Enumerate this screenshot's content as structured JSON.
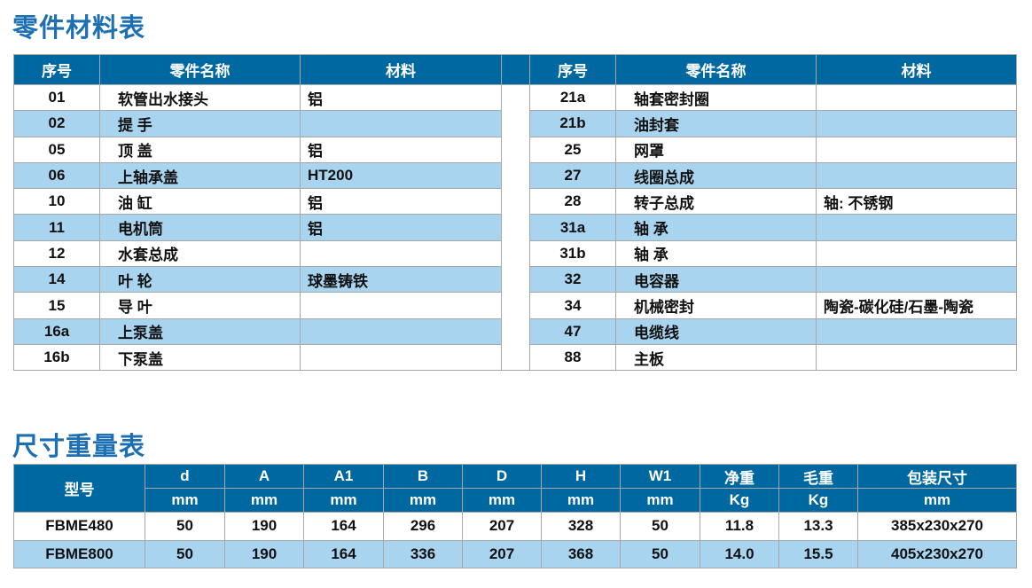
{
  "parts_table": {
    "title": "零件材料表",
    "headers": [
      "序号",
      "零件名称",
      "材料"
    ],
    "left_rows": [
      {
        "no": "01",
        "name": "软管出水接头",
        "material": "铝"
      },
      {
        "no": "02",
        "name": "提  手",
        "material": ""
      },
      {
        "no": "05",
        "name": "顶  盖",
        "material": "铝"
      },
      {
        "no": "06",
        "name": "上轴承盖",
        "material": "HT200"
      },
      {
        "no": "10",
        "name": "油  缸",
        "material": "铝"
      },
      {
        "no": "11",
        "name": "电机筒",
        "material": "铝"
      },
      {
        "no": "12",
        "name": "水套总成",
        "material": ""
      },
      {
        "no": "14",
        "name": "叶  轮",
        "material": "球墨铸铁"
      },
      {
        "no": "15",
        "name": "导  叶",
        "material": ""
      },
      {
        "no": "16a",
        "name": "上泵盖",
        "material": ""
      },
      {
        "no": "16b",
        "name": "下泵盖",
        "material": ""
      }
    ],
    "right_rows": [
      {
        "no": "21a",
        "name": "轴套密封圈",
        "material": ""
      },
      {
        "no": "21b",
        "name": "油封套",
        "material": ""
      },
      {
        "no": "25",
        "name": "网罩",
        "material": ""
      },
      {
        "no": "27",
        "name": "线圈总成",
        "material": ""
      },
      {
        "no": "28",
        "name": "转子总成",
        "material": "轴: 不锈钢"
      },
      {
        "no": "31a",
        "name": "轴  承",
        "material": ""
      },
      {
        "no": "31b",
        "name": "轴  承",
        "material": ""
      },
      {
        "no": "32",
        "name": "电容器",
        "material": ""
      },
      {
        "no": "34",
        "name": "机械密封",
        "material": "陶瓷-碳化硅/石墨-陶瓷"
      },
      {
        "no": "47",
        "name": "电缆线",
        "material": ""
      },
      {
        "no": "88",
        "name": "主板",
        "material": ""
      }
    ]
  },
  "dims_table": {
    "title": "尺寸重量表",
    "model_header": "型号",
    "columns": [
      {
        "name": "d",
        "unit": "mm"
      },
      {
        "name": "A",
        "unit": "mm"
      },
      {
        "name": "A1",
        "unit": "mm"
      },
      {
        "name": "B",
        "unit": "mm"
      },
      {
        "name": "D",
        "unit": "mm"
      },
      {
        "name": "H",
        "unit": "mm"
      },
      {
        "name": "W1",
        "unit": "mm"
      },
      {
        "name": "净重",
        "unit": "Kg"
      },
      {
        "name": "毛重",
        "unit": "Kg"
      },
      {
        "name": "包装尺寸",
        "unit": "mm"
      }
    ],
    "rows": [
      {
        "model": "FBME480",
        "values": [
          "50",
          "190",
          "164",
          "296",
          "207",
          "328",
          "50",
          "11.8",
          "13.3",
          "385x230x270"
        ]
      },
      {
        "model": "FBME800",
        "values": [
          "50",
          "190",
          "164",
          "336",
          "207",
          "368",
          "50",
          "14.0",
          "15.5",
          "405x230x270"
        ]
      }
    ]
  },
  "colors": {
    "header_bg": "#0068a1",
    "alt_row_bg": "#a9d4ef",
    "title": "#1b6fb2"
  }
}
